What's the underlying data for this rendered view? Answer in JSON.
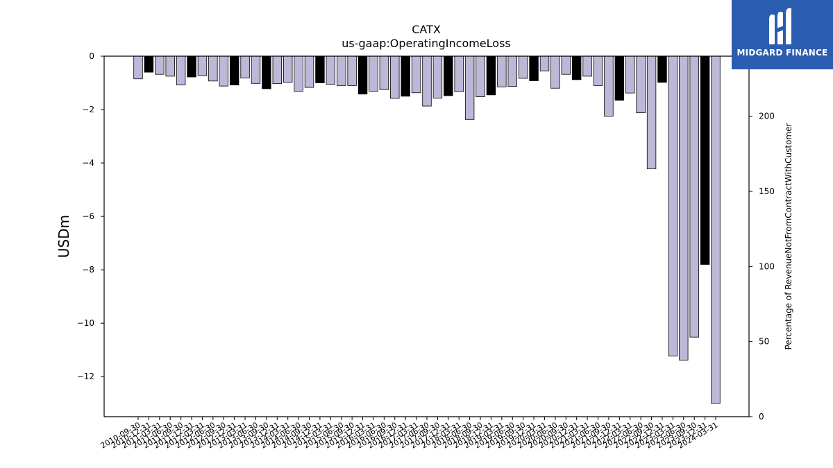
{
  "chart_data": {
    "type": "bar",
    "title": "CATX",
    "subtitle": "us-gaap:OperatingIncomeLoss",
    "ylabel": "USDm",
    "y2label": "Percentage of RevenueNotFromContractWithCustomer",
    "ylim": [
      -13.5,
      0
    ],
    "y2lim": [
      0,
      240
    ],
    "yticks": [
      0,
      -2,
      -4,
      -6,
      -8,
      -10,
      -12
    ],
    "y2ticks": [
      0,
      50,
      100,
      150,
      200
    ],
    "grid": false,
    "colors": {
      "default": "#bcb8d8",
      "highlight": "#000000",
      "edge": "#000000"
    },
    "categories": [
      "2010-09-30",
      "2010-12-31",
      "2011-03-31",
      "2011-06-30",
      "2011-09-30",
      "2011-12-31",
      "2012-03-31",
      "2012-06-30",
      "2012-09-30",
      "2012-12-31",
      "2013-03-31",
      "2013-06-30",
      "2013-09-30",
      "2013-12-31",
      "2014-03-31",
      "2014-06-30",
      "2014-09-30",
      "2014-12-31",
      "2015-03-31",
      "2015-06-30",
      "2015-09-30",
      "2015-12-31",
      "2016-03-31",
      "2016-06-30",
      "2016-09-30",
      "2016-12-31",
      "2017-03-31",
      "2017-06-30",
      "2017-09-30",
      "2017-12-31",
      "2018-03-31",
      "2018-06-30",
      "2018-09-30",
      "2018-12-31",
      "2019-03-31",
      "2019-06-30",
      "2019-09-30",
      "2019-12-31",
      "2020-03-31",
      "2020-06-30",
      "2020-09-30",
      "2020-12-31",
      "2021-03-31",
      "2021-06-30",
      "2021-09-30",
      "2021-12-31",
      "2022-03-31",
      "2022-06-30",
      "2022-09-30",
      "2022-12-31",
      "2023-03-31",
      "2023-06-30",
      "2023-09-30",
      "2023-12-31",
      "2024-03-31"
    ],
    "values": [
      -0.85,
      -0.6,
      -0.68,
      -0.75,
      -1.08,
      -0.78,
      -0.73,
      -0.93,
      -1.12,
      -1.08,
      -0.82,
      -1.02,
      -1.22,
      -1.03,
      -0.98,
      -1.32,
      -1.17,
      -1.0,
      -1.05,
      -1.1,
      -1.1,
      -1.42,
      -1.32,
      -1.25,
      -1.58,
      -1.5,
      -1.37,
      -1.87,
      -1.57,
      -1.48,
      -1.33,
      -2.37,
      -1.52,
      -1.45,
      -1.15,
      -1.13,
      -0.83,
      -0.92,
      -0.55,
      -1.2,
      -0.68,
      -0.88,
      -0.75,
      -1.1,
      -2.25,
      -1.65,
      -1.38,
      -2.12,
      -4.22,
      -0.98,
      -11.23,
      -11.38,
      -10.52,
      -7.8,
      -13.0
    ],
    "highlight": [
      false,
      true,
      false,
      false,
      false,
      true,
      false,
      false,
      false,
      true,
      false,
      false,
      true,
      false,
      false,
      false,
      false,
      true,
      false,
      false,
      false,
      true,
      false,
      false,
      false,
      true,
      false,
      false,
      false,
      true,
      false,
      false,
      false,
      true,
      false,
      false,
      false,
      true,
      false,
      false,
      false,
      true,
      false,
      false,
      false,
      true,
      false,
      false,
      false,
      true,
      false,
      false,
      false,
      true,
      false
    ]
  },
  "logo": {
    "text": "MIDGARD FINANCE"
  }
}
